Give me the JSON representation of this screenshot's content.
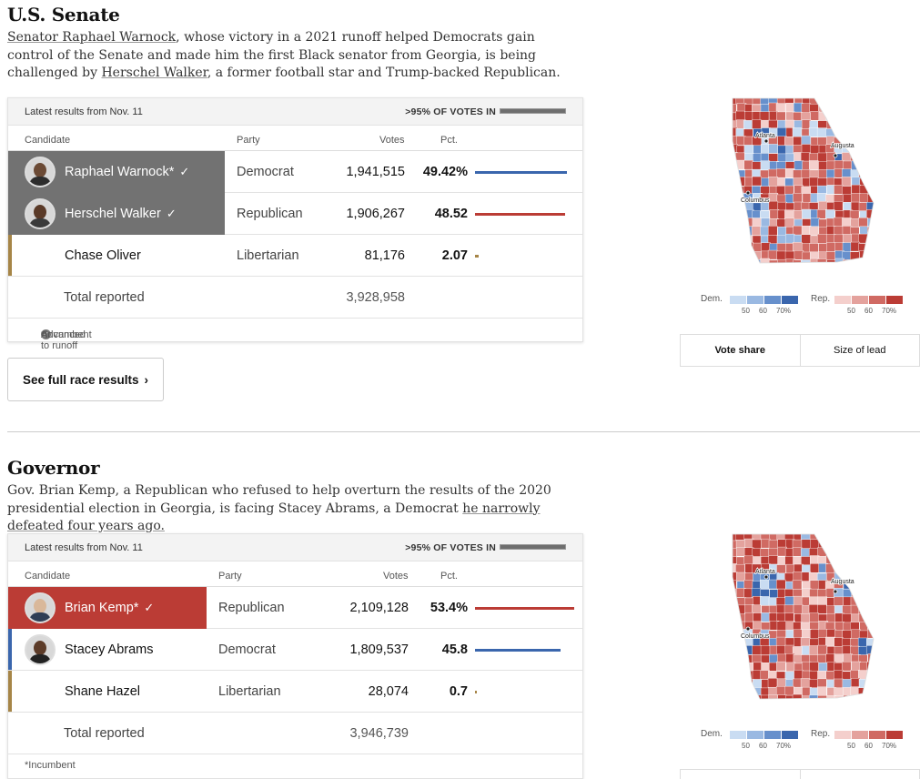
{
  "senate": {
    "title": "U.S. Senate",
    "desc_parts": [
      {
        "text": "Senator Raphael Warnock",
        "link": true
      },
      {
        "text": ", whose victory in a 2021 runoff helped Democrats gain control of the Senate and made him the first Black senator from Georgia, is being challenged by ",
        "link": false
      },
      {
        "text": "Herschel Walker",
        "link": true
      },
      {
        "text": ", a former football star and Trump-backed Republican.",
        "link": false
      }
    ],
    "latest": "Latest results from Nov. 11",
    "votes_in": ">95% OF VOTES IN",
    "headers": {
      "candidate": "Candidate",
      "party": "Party",
      "votes": "Votes",
      "pct": "Pct."
    },
    "candidates": [
      {
        "name": "Raphael Warnock*",
        "party": "Democrat",
        "votes": "1,941,515",
        "pct": "49.42%",
        "pct_value": 49.42,
        "advanced": true,
        "color": "#3a66ad"
      },
      {
        "name": "Herschel Walker",
        "party": "Republican",
        "votes": "1,906,267",
        "pct": "48.52",
        "pct_value": 48.52,
        "advanced": true,
        "color": "#bb3c35"
      },
      {
        "name": "Chase Oliver",
        "party": "Libertarian",
        "votes": "81,176",
        "pct": "2.07",
        "pct_value": 2.07,
        "advanced": false,
        "color": "#a68547"
      }
    ],
    "total_label": "Total reported",
    "total": "3,928,958",
    "footnote_adv": "Advanced to runoff",
    "footnote_inc": "*Incumbent",
    "button": "See full race results"
  },
  "governor": {
    "title": "Governor",
    "desc_parts": [
      {
        "text": "Gov. Brian Kemp, a Republican who refused to help overturn the results of the 2020 presidential election in Georgia, is facing Stacey Abrams, a Democrat ",
        "link": false
      },
      {
        "text": "he narrowly defeated four years ago.",
        "link": true
      }
    ],
    "latest": "Latest results from Nov. 11",
    "votes_in": ">95% OF VOTES IN",
    "headers": {
      "candidate": "Candidate",
      "party": "Party",
      "votes": "Votes",
      "pct": "Pct."
    },
    "candidates": [
      {
        "name": "Brian Kemp*",
        "party": "Republican",
        "votes": "2,109,128",
        "pct": "53.4%",
        "pct_value": 53.4,
        "winner": true,
        "color": "#bb3c35"
      },
      {
        "name": "Stacey Abrams",
        "party": "Democrat",
        "votes": "1,809,537",
        "pct": "45.8",
        "pct_value": 45.8,
        "winner": false,
        "color": "#3a66ad"
      },
      {
        "name": "Shane Hazel",
        "party": "Libertarian",
        "votes": "28,074",
        "pct": "0.7",
        "pct_value": 0.7,
        "winner": false,
        "color": "#a68547"
      }
    ],
    "total_label": "Total reported",
    "total": "3,946,739",
    "footnote_inc": "*Incumbent"
  },
  "map": {
    "cities": [
      "Atlanta",
      "Augusta",
      "Columbus"
    ],
    "legend_dem": "Dem.",
    "legend_rep": "Rep.",
    "ticks": [
      "50",
      "60",
      "70%"
    ],
    "dem_colors": [
      "#c9dcf2",
      "#9ab9e2",
      "#6790cc",
      "#3a66ad"
    ],
    "rep_colors": [
      "#f4cfcc",
      "#e4a29d",
      "#d06a63",
      "#bb3c35"
    ]
  },
  "tabs": {
    "vote_share": "Vote share",
    "size_of_lead": "Size of lead"
  }
}
